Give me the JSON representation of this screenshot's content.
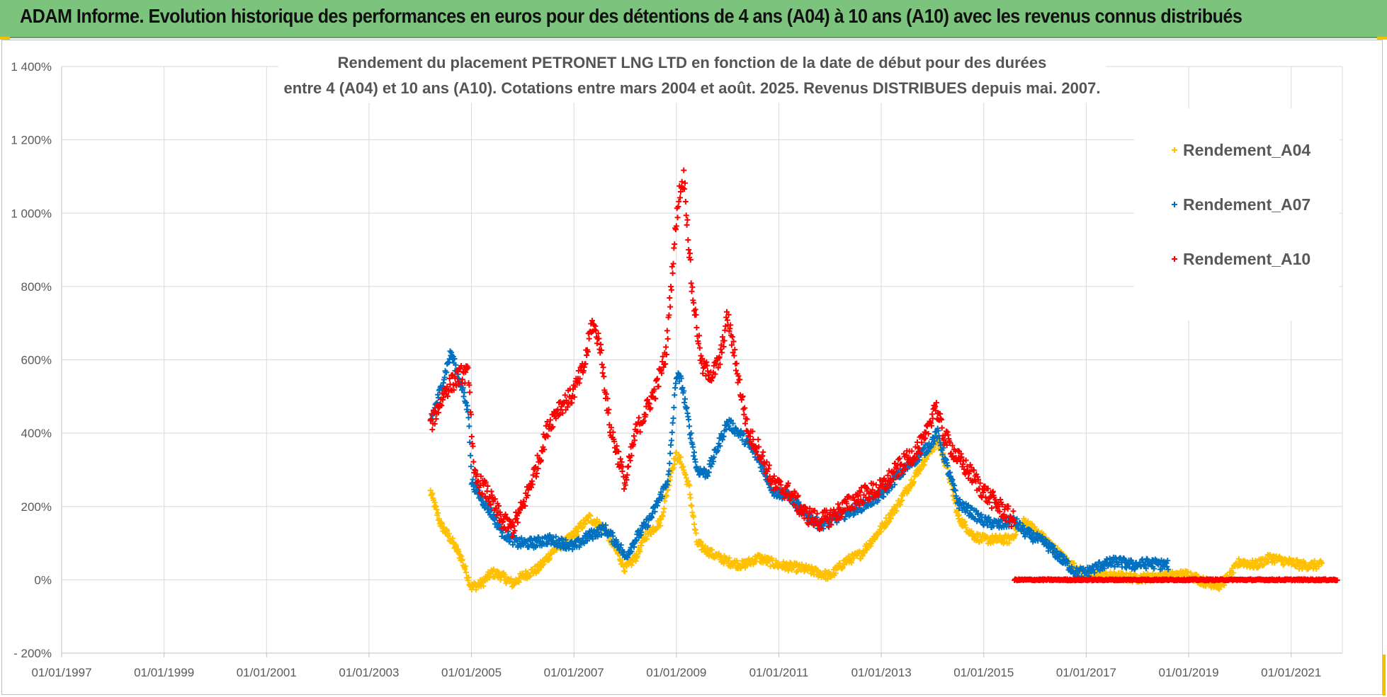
{
  "banner": {
    "title": "ADAM Informe. Evolution historique des performances en euros pour des détentions de 4 ans (A04) à 10 ans (A10) avec les revenus connus distribués"
  },
  "chart_data": {
    "type": "scatter",
    "title_line1": "Rendement du placement PETRONET LNG LTD en fonction de la date de début pour des durées",
    "title_line2": "entre 4 (A04) et 10 ans (A10). Cotations entre mars 2004 et août. 2025. Revenus DISTRIBUES depuis mai. 2007.",
    "ylim": [
      -200,
      1400
    ],
    "yticks": [
      -200,
      0,
      200,
      400,
      600,
      800,
      1000,
      1200,
      1400
    ],
    "ytick_labels": [
      "- 200%",
      "0%",
      "200%",
      "400%",
      "600%",
      "800%",
      "1 000%",
      "1 200%",
      "1 400%"
    ],
    "xlim": [
      1997.0,
      2022.0
    ],
    "xticks": [
      1997,
      1999,
      2001,
      2003,
      2005,
      2007,
      2009,
      2011,
      2013,
      2015,
      2017,
      2019,
      2021
    ],
    "xtick_labels": [
      "01/01/1997",
      "01/01/1999",
      "01/01/2001",
      "01/01/2003",
      "01/01/2005",
      "01/01/2007",
      "01/01/2009",
      "01/01/2011",
      "01/01/2013",
      "01/01/2015",
      "01/01/2017",
      "01/01/2019",
      "01/01/2021"
    ],
    "grid": true,
    "legend_position": "top-right",
    "marker": "+",
    "series": [
      {
        "name": "Rendement_A04",
        "color": "#ffc000",
        "x_start": 2004.2,
        "x_end": 2021.6,
        "jitter": 12,
        "points": [
          [
            2004.2,
            240
          ],
          [
            2004.4,
            150
          ],
          [
            2004.6,
            110
          ],
          [
            2004.8,
            60
          ],
          [
            2005.0,
            -20
          ],
          [
            2005.2,
            -10
          ],
          [
            2005.4,
            20
          ],
          [
            2005.6,
            10
          ],
          [
            2005.8,
            -10
          ],
          [
            2006.0,
            10
          ],
          [
            2006.3,
            30
          ],
          [
            2006.6,
            80
          ],
          [
            2006.9,
            110
          ],
          [
            2007.1,
            140
          ],
          [
            2007.3,
            170
          ],
          [
            2007.6,
            140
          ],
          [
            2007.9,
            60
          ],
          [
            2008.0,
            30
          ],
          [
            2008.2,
            60
          ],
          [
            2008.4,
            120
          ],
          [
            2008.7,
            160
          ],
          [
            2008.9,
            300
          ],
          [
            2009.0,
            340
          ],
          [
            2009.1,
            320
          ],
          [
            2009.25,
            250
          ],
          [
            2009.4,
            100
          ],
          [
            2009.7,
            70
          ],
          [
            2010.0,
            50
          ],
          [
            2010.3,
            40
          ],
          [
            2010.6,
            60
          ],
          [
            2011.0,
            40
          ],
          [
            2011.5,
            30
          ],
          [
            2012.0,
            10
          ],
          [
            2012.3,
            50
          ],
          [
            2012.6,
            70
          ],
          [
            2013.0,
            140
          ],
          [
            2013.3,
            200
          ],
          [
            2013.6,
            270
          ],
          [
            2013.9,
            340
          ],
          [
            2014.1,
            380
          ],
          [
            2014.3,
            300
          ],
          [
            2014.5,
            170
          ],
          [
            2014.8,
            120
          ],
          [
            2015.0,
            110
          ],
          [
            2015.5,
            110
          ],
          [
            2015.8,
            160
          ],
          [
            2016.2,
            110
          ],
          [
            2016.7,
            40
          ],
          [
            2017.0,
            15
          ],
          [
            2017.5,
            10
          ],
          [
            2018.0,
            5
          ],
          [
            2018.5,
            10
          ],
          [
            2019.0,
            15
          ],
          [
            2019.3,
            -5
          ],
          [
            2019.6,
            -15
          ],
          [
            2019.8,
            10
          ],
          [
            2020.0,
            50
          ],
          [
            2020.3,
            40
          ],
          [
            2020.6,
            60
          ],
          [
            2020.9,
            50
          ],
          [
            2021.2,
            40
          ],
          [
            2021.6,
            40
          ]
        ]
      },
      {
        "name": "Rendement_A07",
        "color": "#0070c0",
        "x_start": 2004.2,
        "x_end": 2018.6,
        "jitter": 14,
        "points": [
          [
            2004.2,
            430
          ],
          [
            2004.4,
            520
          ],
          [
            2004.6,
            620
          ],
          [
            2004.8,
            530
          ],
          [
            2004.95,
            450
          ],
          [
            2005.0,
            270
          ],
          [
            2005.2,
            220
          ],
          [
            2005.4,
            180
          ],
          [
            2005.6,
            130
          ],
          [
            2005.9,
            100
          ],
          [
            2006.2,
            100
          ],
          [
            2006.5,
            110
          ],
          [
            2006.8,
            100
          ],
          [
            2007.0,
            90
          ],
          [
            2007.3,
            120
          ],
          [
            2007.6,
            140
          ],
          [
            2007.9,
            90
          ],
          [
            2008.0,
            60
          ],
          [
            2008.2,
            110
          ],
          [
            2008.5,
            170
          ],
          [
            2008.7,
            230
          ],
          [
            2008.85,
            280
          ],
          [
            2009.0,
            560
          ],
          [
            2009.1,
            540
          ],
          [
            2009.25,
            420
          ],
          [
            2009.4,
            300
          ],
          [
            2009.6,
            290
          ],
          [
            2009.8,
            360
          ],
          [
            2010.0,
            430
          ],
          [
            2010.3,
            390
          ],
          [
            2010.6,
            330
          ],
          [
            2010.9,
            240
          ],
          [
            2011.2,
            230
          ],
          [
            2011.5,
            180
          ],
          [
            2011.8,
            150
          ],
          [
            2012.0,
            160
          ],
          [
            2012.3,
            180
          ],
          [
            2012.6,
            200
          ],
          [
            2013.0,
            230
          ],
          [
            2013.3,
            280
          ],
          [
            2013.6,
            320
          ],
          [
            2013.9,
            360
          ],
          [
            2014.1,
            400
          ],
          [
            2014.3,
            300
          ],
          [
            2014.5,
            210
          ],
          [
            2014.8,
            180
          ],
          [
            2015.0,
            160
          ],
          [
            2015.3,
            150
          ],
          [
            2015.6,
            160
          ],
          [
            2015.8,
            130
          ],
          [
            2016.2,
            100
          ],
          [
            2016.5,
            60
          ],
          [
            2016.8,
            20
          ],
          [
            2017.0,
            20
          ],
          [
            2017.3,
            40
          ],
          [
            2017.6,
            50
          ],
          [
            2017.9,
            40
          ],
          [
            2018.2,
            45
          ],
          [
            2018.6,
            40
          ]
        ]
      },
      {
        "name": "Rendement_A10",
        "color": "#ff0000",
        "x_start": 2004.2,
        "x_end": 2015.6,
        "jitter": 25,
        "points": [
          [
            2004.2,
            420
          ],
          [
            2004.5,
            520
          ],
          [
            2004.8,
            560
          ],
          [
            2004.95,
            560
          ],
          [
            2005.05,
            280
          ],
          [
            2005.3,
            240
          ],
          [
            2005.6,
            160
          ],
          [
            2005.8,
            140
          ],
          [
            2006.0,
            200
          ],
          [
            2006.3,
            320
          ],
          [
            2006.5,
            420
          ],
          [
            2006.7,
            470
          ],
          [
            2006.95,
            500
          ],
          [
            2007.2,
            580
          ],
          [
            2007.35,
            700
          ],
          [
            2007.5,
            650
          ],
          [
            2007.7,
            420
          ],
          [
            2007.9,
            320
          ],
          [
            2008.0,
            260
          ],
          [
            2008.2,
            400
          ],
          [
            2008.4,
            460
          ],
          [
            2008.6,
            520
          ],
          [
            2008.8,
            620
          ],
          [
            2008.95,
            900
          ],
          [
            2009.05,
            1050
          ],
          [
            2009.15,
            1100
          ],
          [
            2009.3,
            800
          ],
          [
            2009.5,
            580
          ],
          [
            2009.7,
            560
          ],
          [
            2009.85,
            600
          ],
          [
            2010.0,
            720
          ],
          [
            2010.2,
            560
          ],
          [
            2010.4,
            400
          ],
          [
            2010.6,
            360
          ],
          [
            2010.9,
            260
          ],
          [
            2011.2,
            240
          ],
          [
            2011.5,
            180
          ],
          [
            2011.8,
            160
          ],
          [
            2012.0,
            170
          ],
          [
            2012.3,
            200
          ],
          [
            2012.6,
            230
          ],
          [
            2013.0,
            250
          ],
          [
            2013.3,
            300
          ],
          [
            2013.6,
            340
          ],
          [
            2013.85,
            380
          ],
          [
            2014.05,
            480
          ],
          [
            2014.2,
            400
          ],
          [
            2014.5,
            330
          ],
          [
            2014.8,
            280
          ],
          [
            2015.0,
            240
          ],
          [
            2015.3,
            200
          ],
          [
            2015.6,
            160
          ]
        ]
      },
      {
        "name": "Rendement_A10",
        "color": "#ff0000",
        "x_start": 2015.6,
        "x_end": 2021.9,
        "jitter": 2,
        "points": [
          [
            2015.6,
            0
          ],
          [
            2021.9,
            0
          ]
        ]
      }
    ],
    "legend": [
      {
        "label": "Rendement_A04",
        "color": "#ffc000"
      },
      {
        "label": "Rendement_A07",
        "color": "#0070c0"
      },
      {
        "label": "Rendement_A10",
        "color": "#ff0000"
      }
    ]
  }
}
